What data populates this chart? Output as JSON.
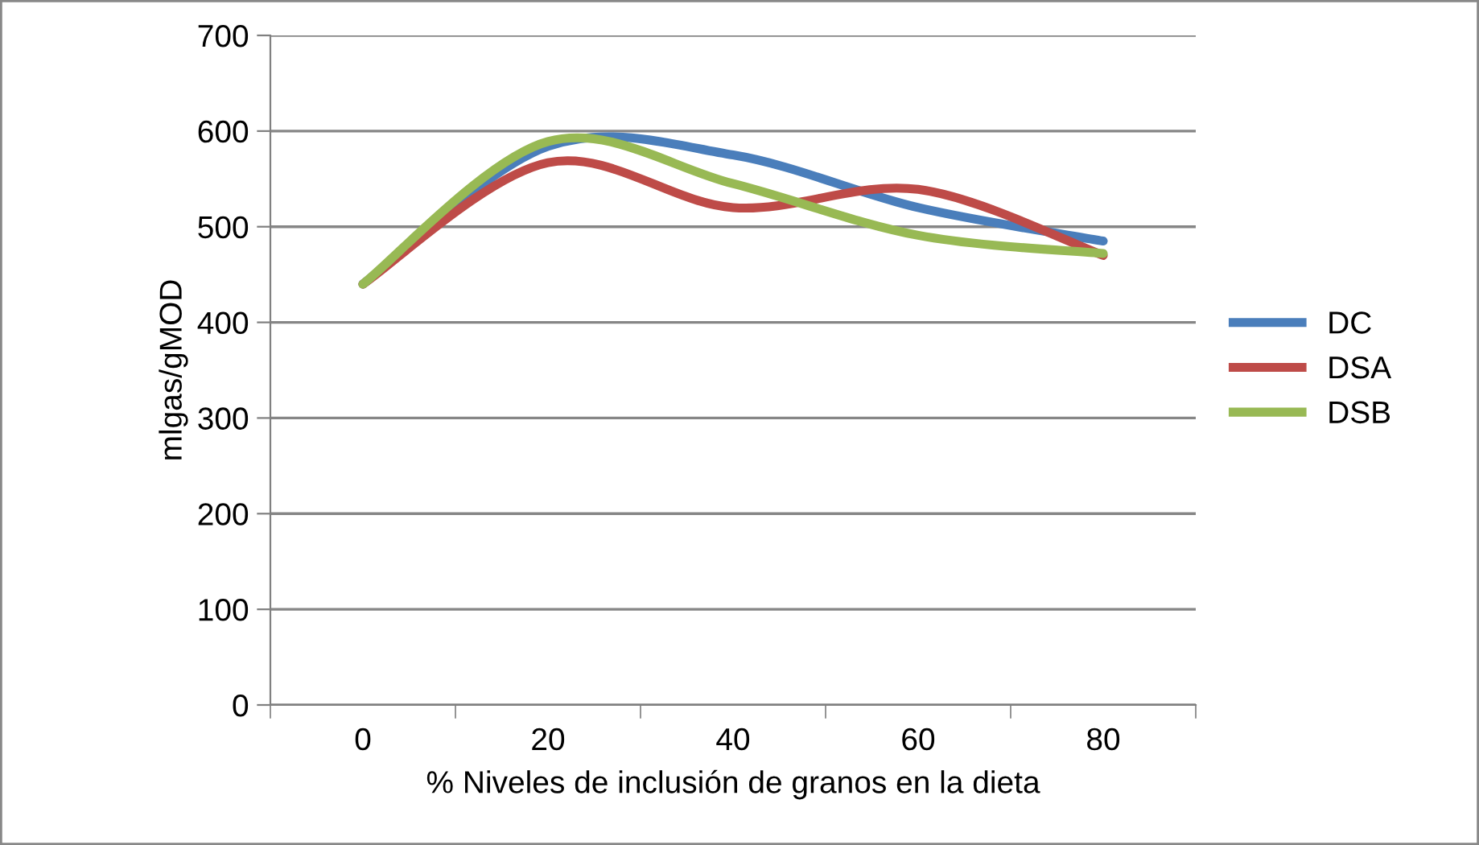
{
  "chart_data": {
    "type": "line",
    "xlabel": "% Niveles de inclusión de granos en la dieta",
    "ylabel": "mlgas/gMOD",
    "categories": [
      "0",
      "20",
      "40",
      "60",
      "80"
    ],
    "series": [
      {
        "name": "DC",
        "color": "#4a7ebb",
        "values": [
          440,
          584,
          575,
          520,
          485
        ]
      },
      {
        "name": "DSA",
        "color": "#be4b48",
        "values": [
          440,
          567,
          520,
          539,
          470
        ]
      },
      {
        "name": "DSB",
        "color": "#98b954",
        "values": [
          440,
          589,
          545,
          491,
          472
        ]
      }
    ],
    "ylim": [
      0,
      700
    ],
    "yticks": [
      0,
      100,
      200,
      300,
      400,
      500,
      600,
      700
    ],
    "grid": "y",
    "legend": "right",
    "marker": "none",
    "line_style": "solid"
  }
}
